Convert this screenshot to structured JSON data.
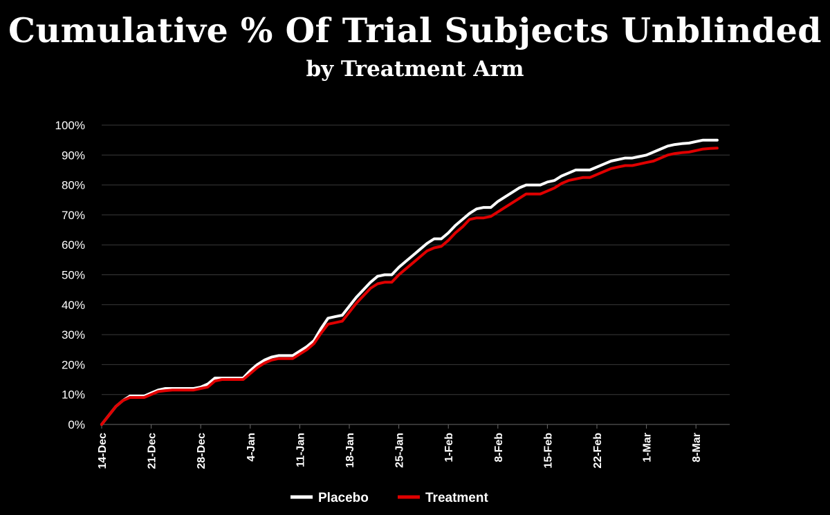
{
  "chart_data": {
    "type": "line",
    "title": "Cumulative % Of Trial Subjects Unblinded",
    "subtitle": "by Treatment Arm",
    "xlabel": "",
    "ylabel": "",
    "ylim": [
      0,
      100
    ],
    "grid": true,
    "legend_position": "bottom",
    "y_ticks": [
      "0%",
      "10%",
      "20%",
      "30%",
      "40%",
      "50%",
      "60%",
      "70%",
      "80%",
      "90%",
      "100%"
    ],
    "x_ticks": [
      "14-Dec",
      "21-Dec",
      "28-Dec",
      "4-Jan",
      "11-Jan",
      "18-Jan",
      "25-Jan",
      "1-Feb",
      "8-Feb",
      "15-Feb",
      "22-Feb",
      "1-Mar",
      "8-Mar"
    ],
    "x_start": "14-Dec",
    "series": [
      {
        "name": "Placebo",
        "color": "#ffffff",
        "points": [
          [
            0,
            0
          ],
          [
            1,
            3
          ],
          [
            2,
            6
          ],
          [
            3,
            8
          ],
          [
            4,
            9.5
          ],
          [
            5,
            9.5
          ],
          [
            6,
            9.5
          ],
          [
            7,
            10.5
          ],
          [
            8,
            11.5
          ],
          [
            9,
            12
          ],
          [
            10,
            12
          ],
          [
            11,
            12
          ],
          [
            12,
            12
          ],
          [
            13,
            12
          ],
          [
            14,
            12.5
          ],
          [
            15,
            13.5
          ],
          [
            16,
            15.5
          ],
          [
            17,
            15.5
          ],
          [
            18,
            15.5
          ],
          [
            19,
            15.5
          ],
          [
            20,
            15.5
          ],
          [
            21,
            18
          ],
          [
            22,
            20
          ],
          [
            23,
            21.5
          ],
          [
            24,
            22.5
          ],
          [
            25,
            23
          ],
          [
            26,
            23
          ],
          [
            27,
            23
          ],
          [
            28,
            24.5
          ],
          [
            29,
            26
          ],
          [
            30,
            28
          ],
          [
            31,
            32
          ],
          [
            32,
            35.5
          ],
          [
            33,
            36
          ],
          [
            34,
            36.5
          ],
          [
            35,
            39.5
          ],
          [
            36,
            42.5
          ],
          [
            37,
            45
          ],
          [
            38,
            47.5
          ],
          [
            39,
            49.5
          ],
          [
            40,
            50
          ],
          [
            41,
            50
          ],
          [
            42,
            52.5
          ],
          [
            43,
            54.5
          ],
          [
            44,
            56.5
          ],
          [
            45,
            58.5
          ],
          [
            46,
            60.5
          ],
          [
            47,
            62
          ],
          [
            48,
            62
          ],
          [
            49,
            64
          ],
          [
            50,
            66.5
          ],
          [
            51,
            68.5
          ],
          [
            52,
            70.5
          ],
          [
            53,
            72
          ],
          [
            54,
            72.5
          ],
          [
            55,
            72.5
          ],
          [
            56,
            74.5
          ],
          [
            57,
            76
          ],
          [
            58,
            77.5
          ],
          [
            59,
            79
          ],
          [
            60,
            80
          ],
          [
            61,
            80
          ],
          [
            62,
            80
          ],
          [
            63,
            81
          ],
          [
            64,
            81.5
          ],
          [
            65,
            83
          ],
          [
            66,
            84
          ],
          [
            67,
            85
          ],
          [
            68,
            85
          ],
          [
            69,
            85
          ],
          [
            70,
            86
          ],
          [
            71,
            87
          ],
          [
            72,
            88
          ],
          [
            73,
            88.5
          ],
          [
            74,
            89
          ],
          [
            75,
            89
          ],
          [
            76,
            89.5
          ],
          [
            77,
            90
          ],
          [
            78,
            91
          ],
          [
            79,
            92
          ],
          [
            80,
            93
          ],
          [
            81,
            93.5
          ],
          [
            82,
            93.8
          ],
          [
            83,
            94
          ],
          [
            84,
            94.5
          ],
          [
            85,
            95
          ],
          [
            86,
            95
          ],
          [
            87,
            95
          ]
        ]
      },
      {
        "name": "Treatment",
        "color": "#e00000",
        "points": [
          [
            0,
            0
          ],
          [
            1,
            3
          ],
          [
            2,
            6
          ],
          [
            3,
            8
          ],
          [
            4,
            9
          ],
          [
            5,
            9
          ],
          [
            6,
            9
          ],
          [
            7,
            10
          ],
          [
            8,
            11
          ],
          [
            9,
            11.3
          ],
          [
            10,
            11.5
          ],
          [
            11,
            11.5
          ],
          [
            12,
            11.5
          ],
          [
            13,
            11.5
          ],
          [
            14,
            12
          ],
          [
            15,
            12.5
          ],
          [
            16,
            14.5
          ],
          [
            17,
            15
          ],
          [
            18,
            15
          ],
          [
            19,
            15
          ],
          [
            20,
            15
          ],
          [
            21,
            17
          ],
          [
            22,
            19
          ],
          [
            23,
            20.5
          ],
          [
            24,
            21.5
          ],
          [
            25,
            22
          ],
          [
            26,
            22
          ],
          [
            27,
            22
          ],
          [
            28,
            23.5
          ],
          [
            29,
            25
          ],
          [
            30,
            27
          ],
          [
            31,
            30.5
          ],
          [
            32,
            33.5
          ],
          [
            33,
            34
          ],
          [
            34,
            34.5
          ],
          [
            35,
            37.5
          ],
          [
            36,
            40.5
          ],
          [
            37,
            43
          ],
          [
            38,
            45.5
          ],
          [
            39,
            47
          ],
          [
            40,
            47.5
          ],
          [
            41,
            47.5
          ],
          [
            42,
            50
          ],
          [
            43,
            52
          ],
          [
            44,
            54
          ],
          [
            45,
            56
          ],
          [
            46,
            58
          ],
          [
            47,
            59
          ],
          [
            48,
            59.5
          ],
          [
            49,
            61.5
          ],
          [
            50,
            64
          ],
          [
            51,
            66
          ],
          [
            52,
            68.5
          ],
          [
            53,
            69
          ],
          [
            54,
            69
          ],
          [
            55,
            69.5
          ],
          [
            56,
            71
          ],
          [
            57,
            72.5
          ],
          [
            58,
            74
          ],
          [
            59,
            75.5
          ],
          [
            60,
            77
          ],
          [
            61,
            77
          ],
          [
            62,
            77
          ],
          [
            63,
            78
          ],
          [
            64,
            79
          ],
          [
            65,
            80.5
          ],
          [
            66,
            81.5
          ],
          [
            67,
            82
          ],
          [
            68,
            82.5
          ],
          [
            69,
            82.5
          ],
          [
            70,
            83.5
          ],
          [
            71,
            84.5
          ],
          [
            72,
            85.5
          ],
          [
            73,
            86
          ],
          [
            74,
            86.5
          ],
          [
            75,
            86.5
          ],
          [
            76,
            87
          ],
          [
            77,
            87.5
          ],
          [
            78,
            88
          ],
          [
            79,
            89
          ],
          [
            80,
            90
          ],
          [
            81,
            90.5
          ],
          [
            82,
            90.8
          ],
          [
            83,
            91
          ],
          [
            84,
            91.5
          ],
          [
            85,
            92
          ],
          [
            86,
            92.2
          ],
          [
            87,
            92.3
          ]
        ]
      }
    ]
  }
}
